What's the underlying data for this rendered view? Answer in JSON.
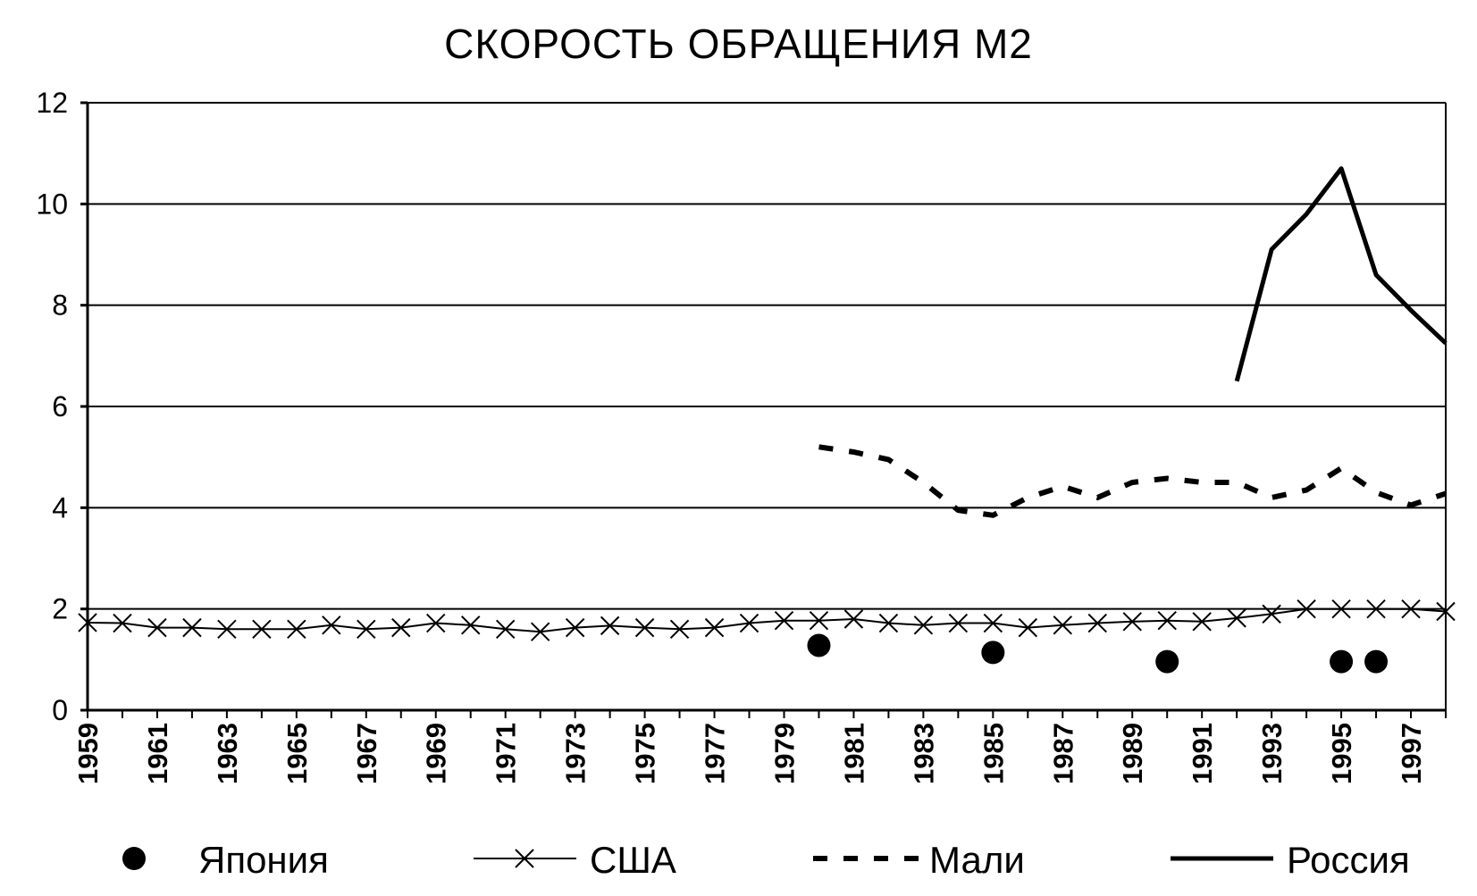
{
  "chart_data": {
    "type": "line",
    "title": "СКОРОСТЬ ОБРАЩЕНИЯ М2",
    "xlabel": "",
    "ylabel": "",
    "ylim": [
      0,
      12
    ],
    "yticks": [
      "0",
      "2",
      "4",
      "6",
      "8",
      "10",
      "12"
    ],
    "xlim": [
      1959,
      1998
    ],
    "xticks": [
      "1959",
      "1961",
      "1963",
      "1965",
      "1967",
      "1969",
      "1971",
      "1973",
      "1975",
      "1977",
      "1979",
      "1981",
      "1983",
      "1985",
      "1987",
      "1989",
      "1991",
      "1993",
      "1995",
      "1997"
    ],
    "grid": "horizontal",
    "legend_position": "bottom",
    "series": [
      {
        "name": "Япония",
        "style": "markers",
        "marker": "filled-circle",
        "color": "#000000",
        "x": [
          1980,
          1985,
          1990,
          1995,
          1996
        ],
        "y": [
          1.28,
          1.14,
          0.96,
          0.96,
          0.96
        ]
      },
      {
        "name": "США",
        "style": "thin-line-x-markers",
        "marker": "x",
        "color": "#000000",
        "x": [
          1959,
          1960,
          1961,
          1962,
          1963,
          1964,
          1965,
          1966,
          1967,
          1968,
          1969,
          1970,
          1971,
          1972,
          1973,
          1974,
          1975,
          1976,
          1977,
          1978,
          1979,
          1980,
          1981,
          1982,
          1983,
          1984,
          1985,
          1986,
          1987,
          1988,
          1989,
          1990,
          1991,
          1992,
          1993,
          1994,
          1995,
          1996,
          1997,
          1998
        ],
        "y": [
          1.73,
          1.72,
          1.63,
          1.63,
          1.6,
          1.6,
          1.6,
          1.68,
          1.6,
          1.63,
          1.72,
          1.68,
          1.6,
          1.55,
          1.63,
          1.67,
          1.63,
          1.6,
          1.63,
          1.72,
          1.77,
          1.77,
          1.8,
          1.72,
          1.68,
          1.72,
          1.72,
          1.63,
          1.68,
          1.72,
          1.75,
          1.77,
          1.75,
          1.82,
          1.9,
          2.0,
          2.0,
          2.0,
          2.0,
          1.95
        ]
      },
      {
        "name": "Мали",
        "style": "dashed-line",
        "color": "#000000",
        "x": [
          1980,
          1981,
          1982,
          1983,
          1984,
          1985,
          1986,
          1987,
          1988,
          1989,
          1990,
          1991,
          1992,
          1993,
          1994,
          1995,
          1996,
          1997,
          1998
        ],
        "y": [
          5.2,
          5.1,
          4.95,
          4.5,
          3.95,
          3.85,
          4.2,
          4.42,
          4.2,
          4.5,
          4.58,
          4.5,
          4.5,
          4.2,
          4.35,
          4.78,
          4.3,
          4.05,
          4.28
        ]
      },
      {
        "name": "Россия",
        "style": "thick-line",
        "color": "#000000",
        "x": [
          1992,
          1993,
          1994,
          1995,
          1996,
          1997,
          1998
        ],
        "y": [
          6.5,
          9.1,
          9.8,
          10.7,
          8.6,
          7.9,
          7.25
        ]
      }
    ]
  }
}
